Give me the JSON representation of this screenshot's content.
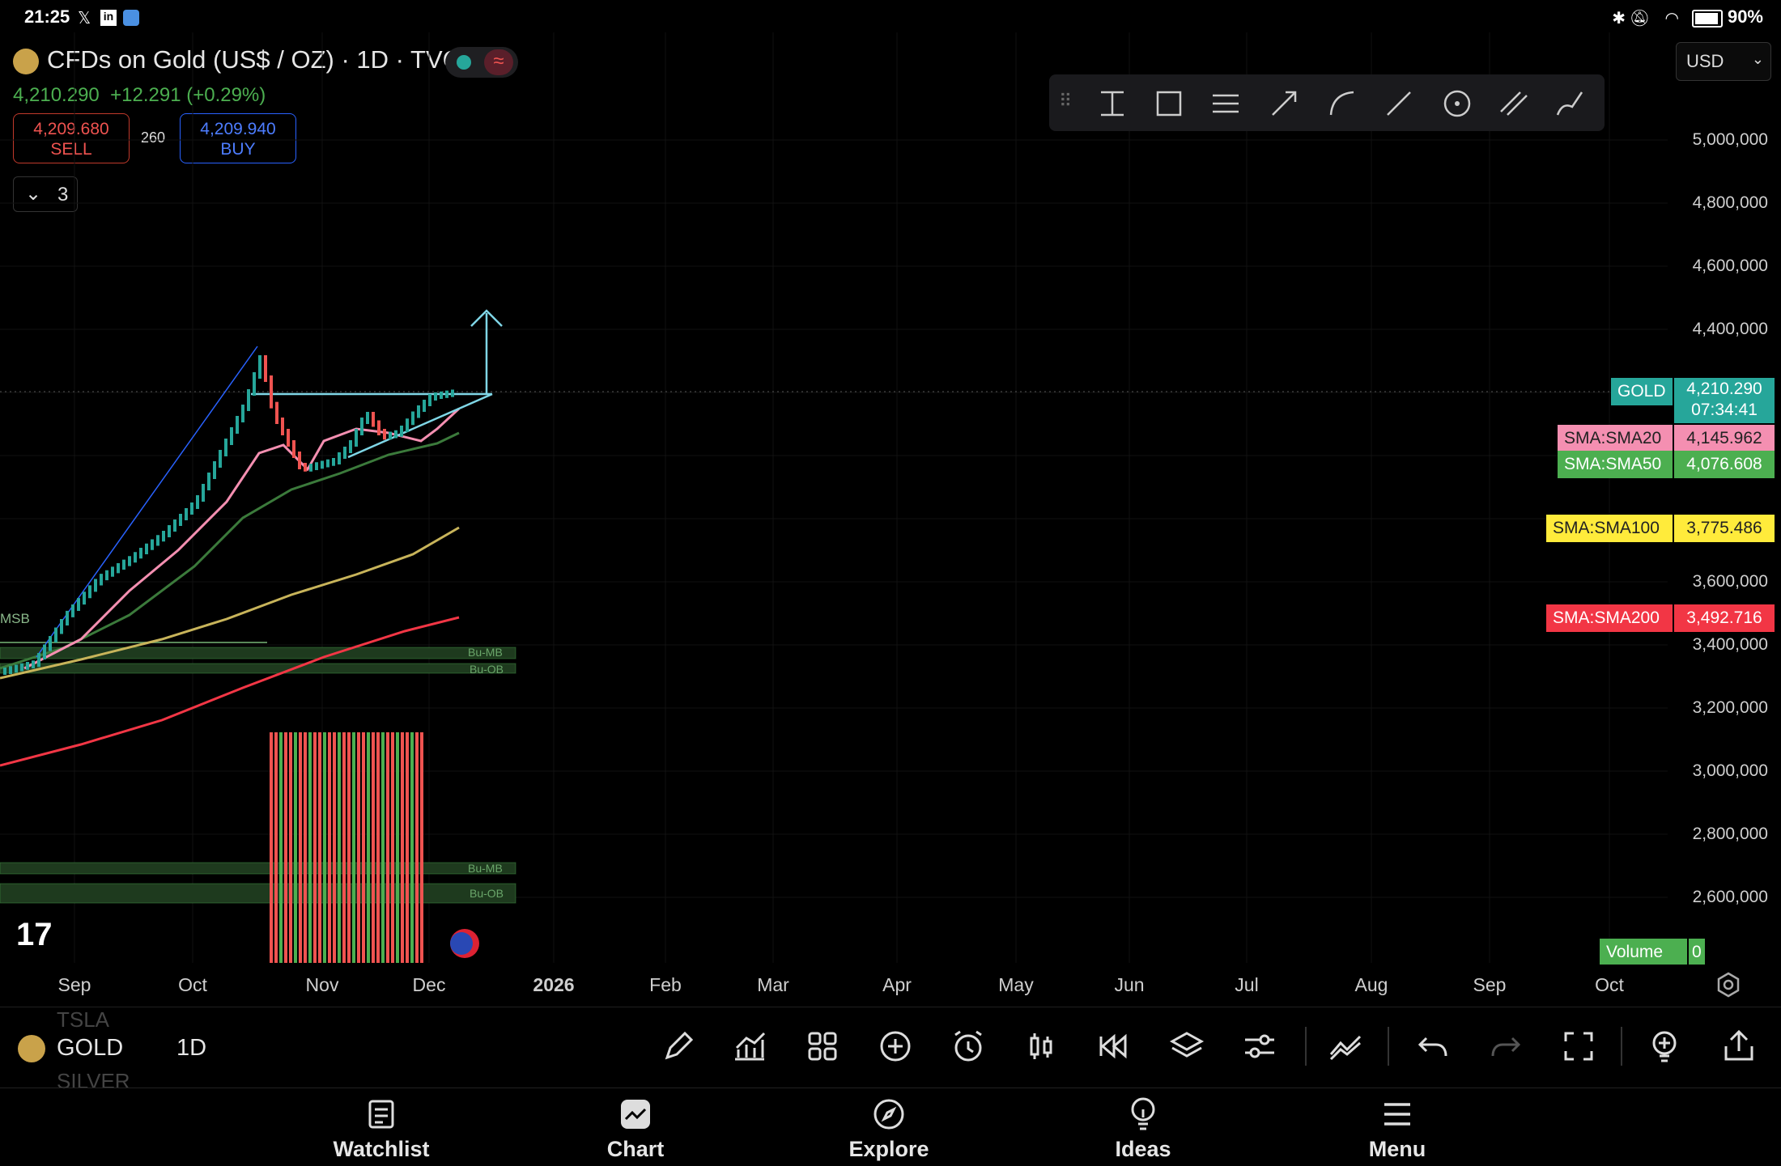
{
  "status_bar": {
    "time": "21:25",
    "battery": "90%"
  },
  "header": {
    "title": "CFDs on Gold (US$ / OZ) · 1D · TVC",
    "price": "4,210.290",
    "change": "+12.291 (+0.29%)",
    "sell_price": "4,209.680",
    "sell_label": "SELL",
    "spread": "260",
    "buy_price": "4,209.940",
    "buy_label": "BUY",
    "indicator_count": "3",
    "currency": "USD"
  },
  "drawing_tools": [
    "measure-tool",
    "rectangle-tool",
    "fib-tool",
    "arrow-tool",
    "path-tool",
    "trendline-tool",
    "circle-tool",
    "parallel-channel-tool",
    "brush-tool"
  ],
  "price_axis": {
    "ticks": [
      "5,000,000",
      "4,800,000",
      "4,600,000",
      "4,400,000",
      "3,600,000",
      "3,400,000",
      "3,200,000",
      "3,000,000",
      "2,800,000",
      "2,600,000"
    ]
  },
  "price_labels": {
    "gold_name": "GOLD",
    "gold_price": "4,210.290",
    "gold_timer": "07:34:41",
    "sma20_name": "SMA:SMA20",
    "sma20_value": "4,145.962",
    "sma50_name": "SMA:SMA50",
    "sma50_value": "4,076.608",
    "sma100_name": "SMA:SMA100",
    "sma100_value": "3,775.486",
    "sma200_name": "SMA:SMA200",
    "sma200_value": "3,492.716",
    "volume_name": "Volume",
    "volume_value": "0"
  },
  "zones": {
    "mb": "Bu-MB",
    "ob": "Bu-OB",
    "msb": "MSB"
  },
  "time_axis": [
    "Sep",
    "Oct",
    "Nov",
    "Dec",
    "2026",
    "Feb",
    "Mar",
    "Apr",
    "May",
    "Jun",
    "Jul",
    "Aug",
    "Sep",
    "Oct"
  ],
  "bottom_bar": {
    "prev_symbol": "TSLA",
    "symbol": "GOLD",
    "next_symbol": "SILVER",
    "interval": "1D"
  },
  "nav": {
    "watchlist": "Watchlist",
    "chart": "Chart",
    "explore": "Explore",
    "ideas": "Ideas",
    "menu": "Menu"
  },
  "colors": {
    "sma20": "#f48fb1",
    "sma50": "#4caf50",
    "sma100": "#ffeb3b",
    "sma200": "#f23645",
    "gold_label": "#26a69a",
    "up": "#26a69a",
    "down": "#ef5350"
  }
}
